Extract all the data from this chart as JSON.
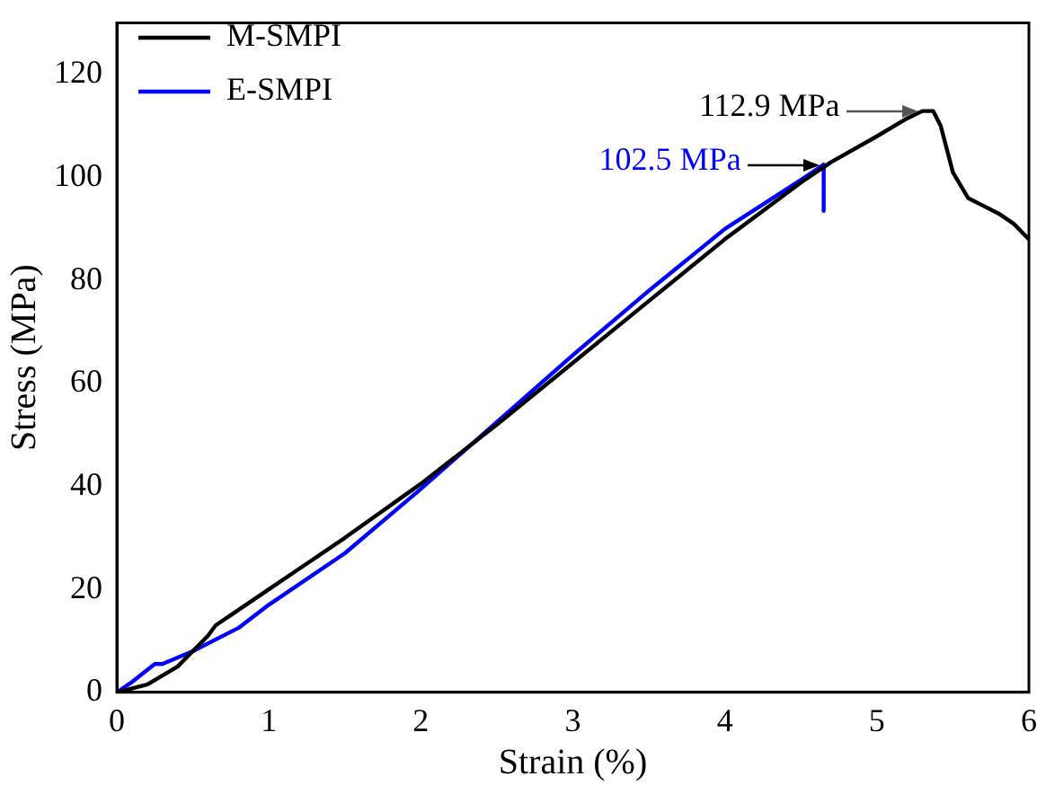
{
  "chart_data": {
    "type": "line",
    "xlabel": "Strain (%)",
    "ylabel": "Stress (MPa)",
    "xlim": [
      0,
      6
    ],
    "ylim": [
      0,
      130
    ],
    "xticks": [
      0,
      1,
      2,
      3,
      4,
      5,
      6
    ],
    "yticks": [
      0,
      20,
      40,
      60,
      80,
      100,
      120
    ],
    "grid": false,
    "legend": "top left",
    "marker": "none",
    "line_style": "solid",
    "series": [
      {
        "name": "M-SMPI",
        "color": "#000000",
        "x": [
          0,
          0.2,
          0.4,
          0.6,
          0.65,
          0.8,
          1,
          1.2,
          1.5,
          2,
          2.5,
          3,
          3.5,
          4,
          4.5,
          4.7,
          5,
          5.2,
          5.3,
          5.37,
          5.42,
          5.5,
          5.6,
          5.7,
          5.8,
          5.9,
          6
        ],
        "values": [
          0,
          1.5,
          5,
          11,
          13,
          16,
          20,
          24,
          30,
          40.5,
          52,
          64,
          76,
          88,
          99,
          103,
          108,
          111.5,
          112.9,
          112.9,
          110,
          101,
          96,
          94.5,
          93,
          91,
          88
        ]
      },
      {
        "name": "E-SMPI",
        "color": "#0000ff",
        "x": [
          0,
          0.1,
          0.25,
          0.3,
          0.5,
          0.8,
          1,
          1.5,
          2,
          2.5,
          3,
          3.5,
          4,
          4.5,
          4.65,
          4.65
        ],
        "values": [
          0,
          2,
          5.5,
          5.5,
          8,
          12.5,
          17,
          27,
          39.5,
          52.5,
          65.5,
          78,
          90,
          99.5,
          102.5,
          93.5
        ]
      }
    ],
    "annotations": [
      {
        "text": "112.9 MPa",
        "x": 5.3,
        "y": 112.9
      },
      {
        "text": "102.5 MPa",
        "x": 4.65,
        "y": 102.5
      }
    ]
  }
}
